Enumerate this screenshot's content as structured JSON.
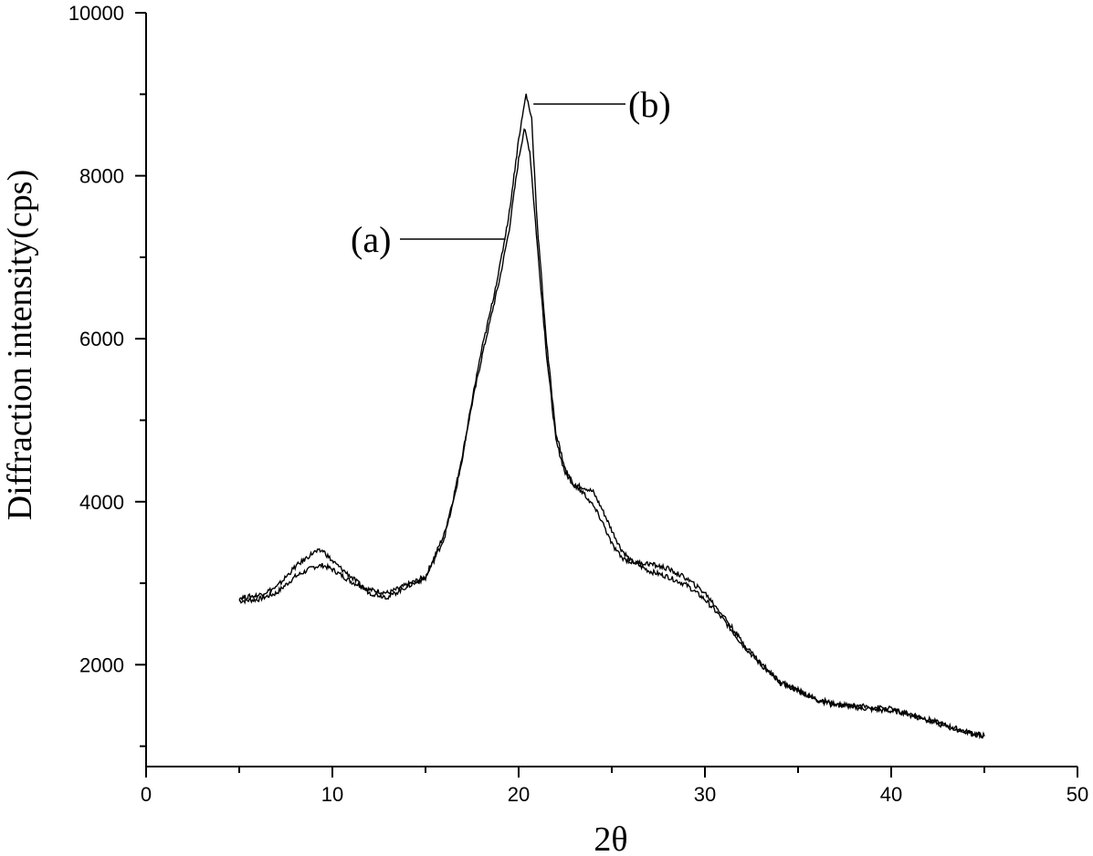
{
  "chart_data": {
    "type": "line",
    "xlabel": "2θ",
    "ylabel": "Diffraction intensity(cps)",
    "xlim": [
      0,
      50
    ],
    "ylim": [
      750,
      10000
    ],
    "xticks": [
      0,
      10,
      20,
      30,
      40,
      50
    ],
    "yticks": [
      2000,
      4000,
      6000,
      8000,
      10000
    ],
    "grid": false,
    "legend": "none",
    "annotations": [
      {
        "text": "(a)",
        "series": "a",
        "x": 19.3,
        "y": 7200
      },
      {
        "text": "(b)",
        "series": "b",
        "x": 20.4,
        "y": 8850
      }
    ],
    "series": [
      {
        "name": "(a)",
        "color": "#000000",
        "x": [
          5,
          6,
          7,
          8,
          9,
          9.5,
          10,
          11,
          12,
          13,
          14,
          15,
          16,
          16.5,
          17,
          17.5,
          18,
          18.5,
          19,
          19.5,
          20,
          20.3,
          20.6,
          21,
          21.5,
          22,
          22.5,
          23,
          23.5,
          24,
          24.5,
          25,
          25.5,
          26,
          27,
          28,
          29,
          30,
          31,
          32,
          33,
          34,
          35,
          36,
          37,
          38,
          39,
          40,
          41,
          42,
          43,
          44,
          45
        ],
        "values": [
          2780,
          2800,
          2880,
          3080,
          3200,
          3220,
          3170,
          3020,
          2920,
          2880,
          2980,
          3080,
          3600,
          4050,
          4600,
          5200,
          5750,
          6250,
          6750,
          7350,
          8200,
          8580,
          8300,
          7150,
          5800,
          4750,
          4350,
          4200,
          4180,
          4120,
          3900,
          3650,
          3420,
          3280,
          3150,
          3080,
          2980,
          2800,
          2550,
          2250,
          2000,
          1780,
          1680,
          1580,
          1520,
          1480,
          1450,
          1430,
          1400,
          1330,
          1250,
          1180,
          1130
        ]
      },
      {
        "name": "(b)",
        "color": "#000000",
        "x": [
          5,
          6,
          7,
          8,
          9,
          9.5,
          10,
          11,
          12,
          13,
          14,
          15,
          16,
          16.5,
          17,
          17.5,
          18,
          18.5,
          19,
          19.5,
          20,
          20.4,
          20.7,
          21,
          21.5,
          22,
          22.5,
          23,
          23.5,
          24,
          24.5,
          25,
          25.5,
          26,
          27,
          28,
          29,
          30,
          31,
          32,
          33,
          34,
          35,
          36,
          37,
          38,
          39,
          40,
          41,
          42,
          43,
          44,
          45
        ],
        "values": [
          2820,
          2850,
          2950,
          3200,
          3380,
          3400,
          3270,
          3080,
          2880,
          2830,
          2960,
          3060,
          3550,
          4000,
          4550,
          5250,
          5850,
          6350,
          6900,
          7550,
          8450,
          9000,
          8700,
          7400,
          5950,
          4850,
          4400,
          4200,
          4100,
          3950,
          3750,
          3480,
          3320,
          3260,
          3240,
          3180,
          3060,
          2880,
          2600,
          2280,
          2020,
          1800,
          1690,
          1560,
          1500,
          1500,
          1480,
          1460,
          1380,
          1310,
          1240,
          1170,
          1120
        ]
      }
    ]
  }
}
